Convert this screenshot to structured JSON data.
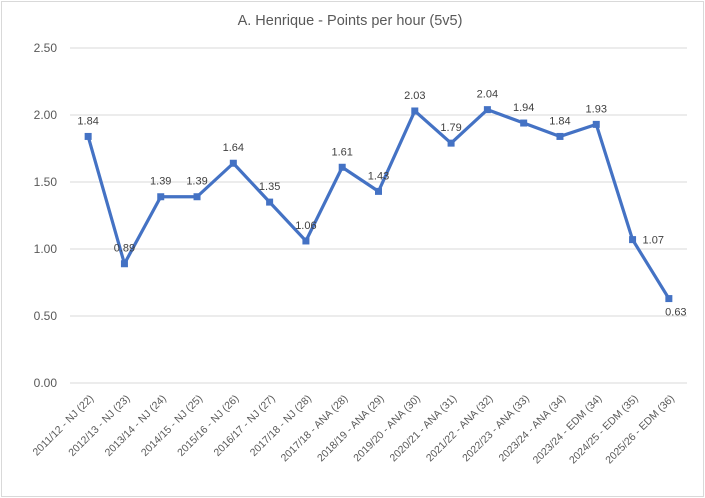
{
  "window": {
    "background": "#FFFFFF",
    "border_color": "#D9D9D9"
  },
  "chart_data": {
    "type": "line",
    "title": "A. Henrique - Points per hour (5v5)",
    "categories": [
      "2011/12 - NJ (22)",
      "2012/13 - NJ (23)",
      "2013/14 - NJ (24)",
      "2014/15 - NJ (25)",
      "2015/16 - NJ (26)",
      "2016/17 - NJ (27)",
      "2017/18 - NJ (28)",
      "2017/18 - ANA (28)",
      "2018/19 - ANA (29)",
      "2019/20 - ANA (30)",
      "2020/21 - ANA (31)",
      "2021/22 - ANA (32)",
      "2022/23 - ANA (33)",
      "2023/24 - ANA (34)",
      "2023/24 - EDM (34)",
      "2024/25 - EDM (35)",
      "2025/26 - EDM (36)"
    ],
    "values": [
      1.84,
      0.89,
      1.39,
      1.39,
      1.64,
      1.35,
      1.06,
      1.61,
      1.43,
      2.03,
      1.79,
      2.04,
      1.94,
      1.84,
      1.93,
      1.07,
      0.63
    ],
    "xlabel": "",
    "ylabel": "",
    "ylim": [
      0,
      2.5
    ],
    "yticks": [
      "0.00",
      "0.50",
      "1.00",
      "1.50",
      "2.00",
      "2.50"
    ],
    "grid": true,
    "legend": "none",
    "marker": "square",
    "data_labels": true,
    "line_color": "#4472C4",
    "label_color": "#404040",
    "axis_text_color": "#595959",
    "gridline_color": "#D9D9D9",
    "label_position_overrides": {
      "15": "right",
      "16": "below-right"
    }
  }
}
